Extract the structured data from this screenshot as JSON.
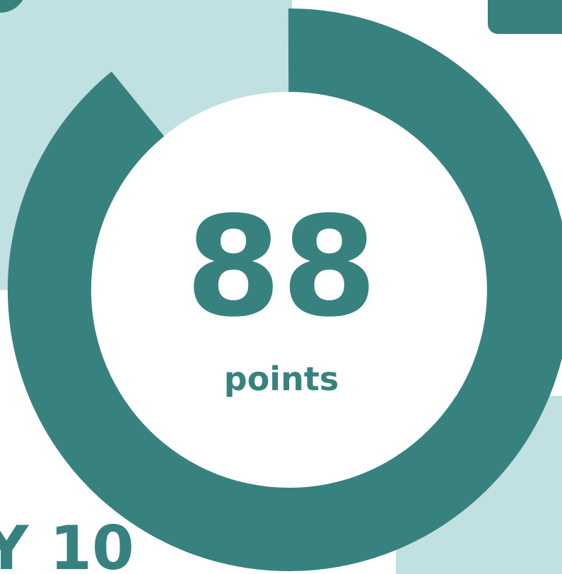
{
  "score": {
    "value": "88",
    "unit": "points"
  },
  "footer": {
    "text": "Y 10"
  }
}
